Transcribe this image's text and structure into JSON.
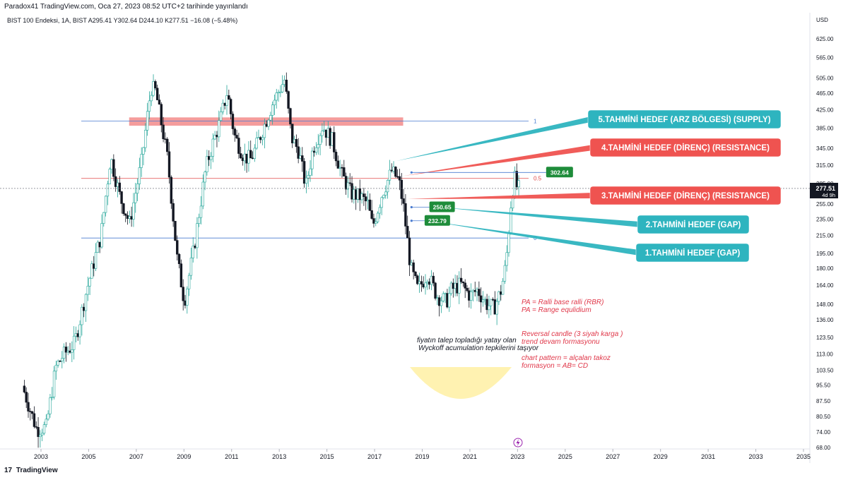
{
  "header": {
    "title": "Paradox41 TradingView.com, Oca 27, 2023 08:52 UTC+2 tarihinde yayınlandı",
    "ohlc": "BIST 100 Endeksi, 1A, BIST  A295.41  Y302.64  D244.10  K277.51  −16.08 (−5.48%)"
  },
  "footer": {
    "logo_glyph": "17",
    "brand": "TradingView"
  },
  "colors": {
    "up": "#26a69a",
    "down": "#131722",
    "cyan_box": "#2eb4bf",
    "red_box": "#ef5350",
    "green_tag": "#1e8c3a",
    "fib_blue": "#4a7bd0",
    "fib_red": "#e04848",
    "zone_red": "#f28b8b",
    "note_red": "#e0384a",
    "yellow_arc": "#fff1a8"
  },
  "chart_data": {
    "type": "candlestick",
    "symbol": "BIST 100 Endeksi",
    "interval": "1A",
    "currency": "USD",
    "ylim": [
      68,
      700
    ],
    "xlim": [
      2002.2,
      2035.6
    ],
    "y_scale": "log",
    "y_ticks": [
      {
        "v": 625,
        "label": "625.00"
      },
      {
        "v": 565,
        "label": "565.00"
      },
      {
        "v": 505,
        "label": "505.00"
      },
      {
        "v": 465,
        "label": "465.00"
      },
      {
        "v": 425,
        "label": "425.00"
      },
      {
        "v": 385,
        "label": "385.00"
      },
      {
        "v": 345,
        "label": "345.00"
      },
      {
        "v": 315,
        "label": "315.00"
      },
      {
        "v": 285,
        "label": "285.00"
      },
      {
        "v": 255,
        "label": "255.00"
      },
      {
        "v": 235,
        "label": "235.00"
      },
      {
        "v": 215,
        "label": "215.00"
      },
      {
        "v": 195,
        "label": "195.00"
      },
      {
        "v": 180,
        "label": "180.00"
      },
      {
        "v": 164,
        "label": "164.00"
      },
      {
        "v": 148,
        "label": "148.00"
      },
      {
        "v": 136,
        "label": "136.00"
      },
      {
        "v": 123.5,
        "label": "123.50"
      },
      {
        "v": 113,
        "label": "113.00"
      },
      {
        "v": 103.5,
        "label": "103.50"
      },
      {
        "v": 95.5,
        "label": "95.50"
      },
      {
        "v": 87.5,
        "label": "87.50"
      },
      {
        "v": 80.5,
        "label": "80.50"
      },
      {
        "v": 74,
        "label": "74.00"
      },
      {
        "v": 68,
        "label": "68.00"
      }
    ],
    "x_ticks": [
      "2003",
      "2005",
      "2007",
      "2009",
      "2011",
      "2013",
      "2015",
      "2017",
      "2019",
      "2021",
      "2023",
      "2025",
      "2027",
      "2029",
      "2031",
      "2033",
      "2035"
    ],
    "x_tick_values": [
      2003,
      2005,
      2007,
      2009,
      2011,
      2013,
      2015,
      2017,
      2019,
      2021,
      2023,
      2025,
      2027,
      2029,
      2031,
      2033,
      2035
    ],
    "anchors": [
      [
        2002.3,
        95
      ],
      [
        2002.9,
        75
      ],
      [
        2003.3,
        76
      ],
      [
        2003.7,
        105
      ],
      [
        2004.0,
        112
      ],
      [
        2004.5,
        120
      ],
      [
        2005.0,
        160
      ],
      [
        2005.6,
        215
      ],
      [
        2006.0,
        330
      ],
      [
        2006.4,
        265
      ],
      [
        2006.8,
        230
      ],
      [
        2007.3,
        320
      ],
      [
        2007.7,
        480
      ],
      [
        2007.9,
        470
      ],
      [
        2008.4,
        325
      ],
      [
        2008.8,
        190
      ],
      [
        2009.1,
        150
      ],
      [
        2009.5,
        200
      ],
      [
        2010.0,
        310
      ],
      [
        2010.3,
        355
      ],
      [
        2010.6,
        400
      ],
      [
        2010.9,
        470
      ],
      [
        2011.2,
        370
      ],
      [
        2011.6,
        330
      ],
      [
        2011.9,
        325
      ],
      [
        2012.3,
        370
      ],
      [
        2012.8,
        440
      ],
      [
        2013.3,
        500
      ],
      [
        2013.6,
        365
      ],
      [
        2013.9,
        340
      ],
      [
        2014.2,
        280
      ],
      [
        2014.5,
        345
      ],
      [
        2014.9,
        390
      ],
      [
        2015.3,
        360
      ],
      [
        2015.7,
        300
      ],
      [
        2016.1,
        270
      ],
      [
        2016.5,
        265
      ],
      [
        2016.8,
        255
      ],
      [
        2017.0,
        225
      ],
      [
        2017.4,
        270
      ],
      [
        2017.8,
        305
      ],
      [
        2018.1,
        290
      ],
      [
        2018.3,
        250
      ],
      [
        2018.6,
        180
      ],
      [
        2018.9,
        160
      ],
      [
        2019.3,
        175
      ],
      [
        2019.7,
        155
      ],
      [
        2020.1,
        150
      ],
      [
        2020.3,
        160
      ],
      [
        2020.7,
        165
      ],
      [
        2021.1,
        155
      ],
      [
        2021.4,
        160
      ],
      [
        2021.8,
        148
      ],
      [
        2022.1,
        145
      ],
      [
        2022.4,
        160
      ],
      [
        2022.6,
        185
      ],
      [
        2022.8,
        255
      ],
      [
        2022.95,
        295
      ],
      [
        2023.07,
        277.51
      ]
    ],
    "last_price": {
      "value": 277.51,
      "label": "277.51",
      "sublabel": "4d 9h"
    },
    "fib_levels": [
      {
        "value": 400,
        "label": "1"
      },
      {
        "value": 293,
        "label": "0.5"
      },
      {
        "value": 212,
        "label": "0"
      }
    ],
    "supply_zone": {
      "x_start": 2006.7,
      "x_end": 2018.2,
      "y_low": 390,
      "y_high": 408
    },
    "price_tags": [
      {
        "label": "302.64",
        "value": 302.64,
        "x": 2024.2
      },
      {
        "label": "250.65",
        "value": 250.65,
        "x": 2019.3
      },
      {
        "label": "232.79",
        "value": 232.79,
        "x": 2019.1
      }
    ],
    "targets": [
      {
        "label": "5.TAHMİNİ HEDEF (ARZ BÖLGESİ) (SUPPLY)",
        "style": "cyan",
        "anchor_x": 2017.9,
        "anchor_y": 322
      },
      {
        "label": "4.TAHMİNİ HEDEF (DİRENÇ) (RESISTANCE)",
        "style": "red",
        "anchor_x": 2018.2,
        "anchor_y": 297
      },
      {
        "label": "3.TAHMİNİ HEDEF (DİRENÇ) (RESISTANCE)",
        "style": "red",
        "anchor_x": 2018.4,
        "anchor_y": 262
      },
      {
        "label": "2.TAHMİNİ HEDEF (GAP)",
        "style": "cyan",
        "anchor_x": 2019.9,
        "anchor_y": 250
      },
      {
        "label": "1.TAHMİNİ HEDEF (GAP)",
        "style": "cyan",
        "anchor_x": 2019.4,
        "anchor_y": 232
      }
    ],
    "notes": {
      "pa1": "PA = Ralli base ralli  (RBR)",
      "pa2": "PA = Range  equlidium",
      "rev1": "Reversal candle (3 siyah karga )",
      "rev2": "trend devam formasyonu",
      "cp1": "chart pattern = alçalan takoz",
      "cp2": "formasyon =   AB= CD",
      "w1": "fiyatın talep topladığı yatay olan",
      "w2": "Wyckoff  acumulation tepkilerini taşıyor"
    }
  }
}
